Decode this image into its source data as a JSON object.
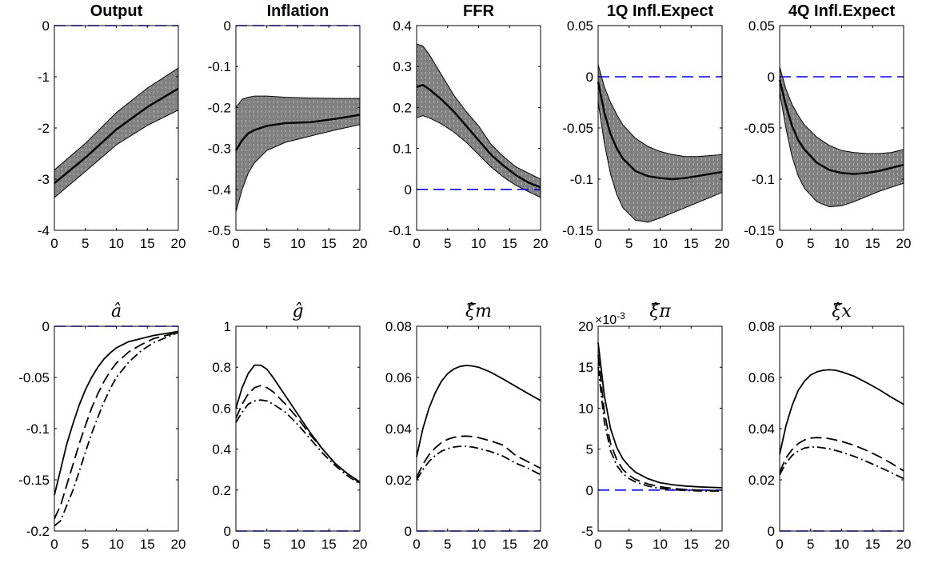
{
  "figure": {
    "background": "#ffffff",
    "band_color": "#808080",
    "band_hatch_color": "#b0b0b0",
    "line_color": "#000000",
    "zero_line_color": "#0000ff"
  },
  "chart_data": [
    {
      "type": "area",
      "title": "Output",
      "xlim": [
        0,
        20
      ],
      "ylim": [
        -4,
        0
      ],
      "xticks": [
        0,
        5,
        10,
        15,
        20
      ],
      "xtick_labels": [
        "0",
        "5",
        "10",
        "15",
        "20"
      ],
      "yticks": [
        -4,
        -3,
        -2,
        -1,
        0
      ],
      "ytick_labels": [
        "-4",
        "-3",
        "-2",
        "-1",
        "0"
      ],
      "zero_line": true,
      "x": [
        0,
        5,
        10,
        15,
        20
      ],
      "band": {
        "upper": [
          -2.82,
          -2.3,
          -1.7,
          -1.22,
          -0.83
        ],
        "lower": [
          -3.36,
          -2.85,
          -2.33,
          -1.95,
          -1.65
        ]
      },
      "series": [
        {
          "style": "solid",
          "values": [
            -3.08,
            -2.58,
            -2.03,
            -1.59,
            -1.23
          ]
        }
      ]
    },
    {
      "type": "area",
      "title": "Inflation",
      "xlim": [
        0,
        20
      ],
      "ylim": [
        -0.5,
        0
      ],
      "xticks": [
        0,
        5,
        10,
        15,
        20
      ],
      "xtick_labels": [
        "0",
        "5",
        "10",
        "15",
        "20"
      ],
      "yticks": [
        -0.5,
        -0.4,
        -0.3,
        -0.2,
        -0.1,
        0
      ],
      "ytick_labels": [
        "-0.5",
        "-0.4",
        "-0.3",
        "-0.2",
        "-0.1",
        "0"
      ],
      "zero_line": true,
      "x": [
        0,
        1,
        2,
        3,
        5,
        8,
        12,
        16,
        20
      ],
      "band": {
        "upper": [
          -0.2,
          -0.18,
          -0.175,
          -0.172,
          -0.172,
          -0.175,
          -0.177,
          -0.178,
          -0.178
        ],
        "lower": [
          -0.455,
          -0.4,
          -0.36,
          -0.335,
          -0.305,
          -0.285,
          -0.27,
          -0.255,
          -0.242
        ]
      },
      "series": [
        {
          "style": "solid",
          "values": [
            -0.305,
            -0.28,
            -0.263,
            -0.255,
            -0.245,
            -0.238,
            -0.236,
            -0.228,
            -0.218
          ]
        }
      ]
    },
    {
      "type": "area",
      "title": "FFR",
      "xlim": [
        0,
        20
      ],
      "ylim": [
        -0.1,
        0.4
      ],
      "xticks": [
        0,
        5,
        10,
        15,
        20
      ],
      "xtick_labels": [
        "0",
        "5",
        "10",
        "15",
        "20"
      ],
      "yticks": [
        -0.1,
        0,
        0.1,
        0.2,
        0.3,
        0.4
      ],
      "ytick_labels": [
        "-0.1",
        "0",
        "0.1",
        "0.2",
        "0.3",
        "0.4"
      ],
      "zero_line": true,
      "x": [
        0,
        1,
        2,
        4,
        6,
        8,
        10,
        12,
        14,
        16,
        18,
        20
      ],
      "band": {
        "upper": [
          0.355,
          0.35,
          0.33,
          0.28,
          0.23,
          0.19,
          0.155,
          0.11,
          0.08,
          0.055,
          0.04,
          0.025
        ],
        "lower": [
          0.175,
          0.18,
          0.175,
          0.16,
          0.14,
          0.115,
          0.085,
          0.055,
          0.03,
          0.01,
          -0.005,
          -0.02
        ]
      },
      "series": [
        {
          "style": "solid",
          "values": [
            0.25,
            0.255,
            0.245,
            0.22,
            0.19,
            0.155,
            0.12,
            0.085,
            0.058,
            0.035,
            0.017,
            0.005
          ]
        }
      ]
    },
    {
      "type": "area",
      "title": "1Q Infl.Expect",
      "xlim": [
        0,
        20
      ],
      "ylim": [
        -0.15,
        0.05
      ],
      "xticks": [
        0,
        5,
        10,
        15,
        20
      ],
      "xtick_labels": [
        "0",
        "5",
        "10",
        "15",
        "20"
      ],
      "yticks": [
        -0.15,
        -0.1,
        -0.05,
        0,
        0.05
      ],
      "ytick_labels": [
        "-0.15",
        "-0.1",
        "-0.05",
        "0",
        "0.05"
      ],
      "zero_line": true,
      "x": [
        0,
        1,
        2,
        3,
        4,
        6,
        8,
        10,
        12,
        14,
        16,
        18,
        20
      ],
      "band": {
        "upper": [
          0.012,
          -0.01,
          -0.025,
          -0.037,
          -0.047,
          -0.06,
          -0.068,
          -0.073,
          -0.076,
          -0.078,
          -0.078,
          -0.077,
          -0.076
        ],
        "lower": [
          -0.025,
          -0.065,
          -0.095,
          -0.115,
          -0.128,
          -0.14,
          -0.142,
          -0.138,
          -0.133,
          -0.128,
          -0.123,
          -0.118,
          -0.113
        ]
      },
      "series": [
        {
          "style": "solid",
          "values": [
            -0.005,
            -0.035,
            -0.056,
            -0.07,
            -0.08,
            -0.092,
            -0.097,
            -0.099,
            -0.1,
            -0.099,
            -0.097,
            -0.095,
            -0.093
          ]
        }
      ]
    },
    {
      "type": "area",
      "title": "4Q Infl.Expect",
      "xlim": [
        0,
        20
      ],
      "ylim": [
        -0.15,
        0.05
      ],
      "xticks": [
        0,
        5,
        10,
        15,
        20
      ],
      "xtick_labels": [
        "0",
        "5",
        "10",
        "15",
        "20"
      ],
      "yticks": [
        -0.15,
        -0.1,
        -0.05,
        0,
        0.05
      ],
      "ytick_labels": [
        "-0.15",
        "-0.1",
        "-0.05",
        "0",
        "0.05"
      ],
      "zero_line": true,
      "x": [
        0,
        1,
        2,
        3,
        4,
        6,
        8,
        10,
        12,
        14,
        16,
        18,
        20
      ],
      "band": {
        "upper": [
          0.01,
          -0.012,
          -0.027,
          -0.038,
          -0.047,
          -0.059,
          -0.067,
          -0.072,
          -0.074,
          -0.075,
          -0.075,
          -0.074,
          -0.071
        ],
        "lower": [
          -0.015,
          -0.05,
          -0.078,
          -0.097,
          -0.109,
          -0.122,
          -0.127,
          -0.126,
          -0.122,
          -0.117,
          -0.112,
          -0.108,
          -0.104
        ]
      },
      "series": [
        {
          "style": "solid",
          "values": [
            -0.003,
            -0.028,
            -0.048,
            -0.062,
            -0.071,
            -0.084,
            -0.091,
            -0.094,
            -0.095,
            -0.094,
            -0.092,
            -0.089,
            -0.086
          ]
        }
      ]
    },
    {
      "type": "line",
      "title": "â",
      "xlim": [
        0,
        20
      ],
      "ylim": [
        -0.2,
        0
      ],
      "xticks": [
        0,
        5,
        10,
        15,
        20
      ],
      "xtick_labels": [
        "0",
        "5",
        "10",
        "15",
        "20"
      ],
      "yticks": [
        -0.2,
        -0.15,
        -0.1,
        -0.05,
        0
      ],
      "ytick_labels": [
        "-0.2",
        "-0.15",
        "-0.1",
        "-0.05",
        "0"
      ],
      "zero_line": true,
      "x": [
        0,
        1,
        2,
        3,
        4,
        5,
        6,
        7,
        8,
        9,
        10,
        12,
        14,
        16,
        18,
        20
      ],
      "series": [
        {
          "style": "solid",
          "values": [
            -0.165,
            -0.14,
            -0.115,
            -0.095,
            -0.077,
            -0.062,
            -0.05,
            -0.04,
            -0.032,
            -0.026,
            -0.021,
            -0.015,
            -0.012,
            -0.009,
            -0.007,
            -0.005
          ]
        },
        {
          "style": "dashed",
          "values": [
            -0.188,
            -0.175,
            -0.155,
            -0.135,
            -0.115,
            -0.097,
            -0.08,
            -0.066,
            -0.054,
            -0.044,
            -0.036,
            -0.025,
            -0.018,
            -0.012,
            -0.009,
            -0.006
          ]
        },
        {
          "style": "dashdot",
          "values": [
            -0.195,
            -0.19,
            -0.175,
            -0.16,
            -0.142,
            -0.123,
            -0.105,
            -0.089,
            -0.074,
            -0.061,
            -0.05,
            -0.035,
            -0.024,
            -0.016,
            -0.011,
            -0.006
          ]
        }
      ]
    },
    {
      "type": "line",
      "title": "ĝ",
      "xlim": [
        0,
        20
      ],
      "ylim": [
        0,
        1
      ],
      "xticks": [
        0,
        5,
        10,
        15,
        20
      ],
      "xtick_labels": [
        "0",
        "5",
        "10",
        "15",
        "20"
      ],
      "yticks": [
        0,
        0.2,
        0.4,
        0.6,
        0.8,
        1
      ],
      "ytick_labels": [
        "0",
        "0.2",
        "0.4",
        "0.6",
        "0.8",
        "1"
      ],
      "zero_line": true,
      "x": [
        0,
        1,
        2,
        3,
        4,
        5,
        6,
        8,
        10,
        12,
        14,
        16,
        18,
        20
      ],
      "series": [
        {
          "style": "solid",
          "values": [
            0.6,
            0.7,
            0.77,
            0.81,
            0.81,
            0.79,
            0.75,
            0.66,
            0.57,
            0.48,
            0.4,
            0.33,
            0.28,
            0.24
          ]
        },
        {
          "style": "dashed",
          "values": [
            0.55,
            0.62,
            0.67,
            0.7,
            0.71,
            0.7,
            0.68,
            0.62,
            0.55,
            0.47,
            0.4,
            0.33,
            0.28,
            0.235
          ]
        },
        {
          "style": "dashdot",
          "values": [
            0.53,
            0.58,
            0.62,
            0.635,
            0.64,
            0.635,
            0.62,
            0.58,
            0.52,
            0.45,
            0.38,
            0.32,
            0.27,
            0.23
          ]
        }
      ]
    },
    {
      "type": "line",
      "title": "ξ̂m",
      "xlim": [
        0,
        20
      ],
      "ylim": [
        0,
        0.08
      ],
      "xticks": [
        0,
        5,
        10,
        15,
        20
      ],
      "xtick_labels": [
        "0",
        "5",
        "10",
        "15",
        "20"
      ],
      "yticks": [
        0,
        0.02,
        0.04,
        0.06,
        0.08
      ],
      "ytick_labels": [
        "0",
        "0.02",
        "0.04",
        "0.06",
        "0.08"
      ],
      "zero_line": true,
      "x": [
        0,
        1,
        2,
        3,
        4,
        5,
        6,
        7,
        8,
        9,
        10,
        12,
        14,
        16,
        18,
        20
      ],
      "series": [
        {
          "style": "solid",
          "values": [
            0.029,
            0.04,
            0.048,
            0.054,
            0.0585,
            0.0615,
            0.0633,
            0.0643,
            0.0647,
            0.0645,
            0.064,
            0.062,
            0.0593,
            0.0565,
            0.0537,
            0.051
          ]
        },
        {
          "style": "dashed",
          "values": [
            0.021,
            0.026,
            0.0298,
            0.0325,
            0.0345,
            0.0358,
            0.0366,
            0.037,
            0.0371,
            0.0369,
            0.0365,
            0.0352,
            0.0335,
            0.0295,
            0.027,
            0.0245
          ]
        },
        {
          "style": "dashdot",
          "values": [
            0.02,
            0.024,
            0.0272,
            0.0295,
            0.0312,
            0.0322,
            0.0328,
            0.0331,
            0.0331,
            0.0328,
            0.0323,
            0.031,
            0.0292,
            0.0265,
            0.0245,
            0.022
          ]
        }
      ]
    },
    {
      "type": "line",
      "title": "ξ̂π",
      "axis_exponent": "×10-3",
      "xlim": [
        0,
        20
      ],
      "ylim": [
        -5,
        20
      ],
      "xticks": [
        0,
        5,
        10,
        15,
        20
      ],
      "xtick_labels": [
        "0",
        "5",
        "10",
        "15",
        "20"
      ],
      "yticks": [
        -5,
        0,
        5,
        10,
        15,
        20
      ],
      "ytick_labels": [
        "-5",
        "0",
        "5",
        "10",
        "15",
        "20"
      ],
      "zero_line": true,
      "x": [
        0,
        1,
        2,
        3,
        4,
        5,
        6,
        8,
        10,
        12,
        14,
        16,
        18,
        20
      ],
      "series": [
        {
          "style": "solid",
          "values": [
            18,
            11.5,
            7.5,
            5.2,
            3.8,
            2.9,
            2.2,
            1.4,
            0.9,
            0.65,
            0.5,
            0.4,
            0.33,
            0.28
          ]
        },
        {
          "style": "dashed",
          "values": [
            16.5,
            9.5,
            5.7,
            3.7,
            2.5,
            1.8,
            1.3,
            0.75,
            0.4,
            0.2,
            0.08,
            0.0,
            -0.05,
            -0.08
          ]
        },
        {
          "style": "dashdot",
          "values": [
            15,
            8.3,
            4.8,
            3.0,
            2.0,
            1.4,
            1.0,
            0.5,
            0.2,
            0.05,
            -0.05,
            -0.1,
            -0.12,
            -0.12
          ]
        }
      ]
    },
    {
      "type": "line",
      "title": "ξ̂x",
      "xlim": [
        0,
        20
      ],
      "ylim": [
        0,
        0.08
      ],
      "xticks": [
        0,
        5,
        10,
        15,
        20
      ],
      "xtick_labels": [
        "0",
        "5",
        "10",
        "15",
        "20"
      ],
      "yticks": [
        0,
        0.02,
        0.04,
        0.06,
        0.08
      ],
      "ytick_labels": [
        "0",
        "0.02",
        "0.04",
        "0.06",
        "0.08"
      ],
      "zero_line": true,
      "x": [
        0,
        1,
        2,
        3,
        4,
        5,
        6,
        7,
        8,
        9,
        10,
        12,
        14,
        16,
        18,
        20
      ],
      "series": [
        {
          "style": "solid",
          "values": [
            0.03,
            0.041,
            0.049,
            0.055,
            0.0585,
            0.061,
            0.0622,
            0.0628,
            0.063,
            0.0628,
            0.0622,
            0.0605,
            0.058,
            0.0553,
            0.0523,
            0.0495
          ]
        },
        {
          "style": "dashed",
          "values": [
            0.023,
            0.0285,
            0.0318,
            0.0342,
            0.0356,
            0.0363,
            0.0365,
            0.0364,
            0.0361,
            0.0356,
            0.035,
            0.0335,
            0.0315,
            0.0292,
            0.0265,
            0.0235
          ]
        },
        {
          "style": "dashdot",
          "values": [
            0.022,
            0.0265,
            0.0295,
            0.0313,
            0.0324,
            0.0328,
            0.0328,
            0.0325,
            0.0321,
            0.0315,
            0.0308,
            0.0292,
            0.0272,
            0.0251,
            0.0228,
            0.0205
          ]
        }
      ]
    }
  ]
}
